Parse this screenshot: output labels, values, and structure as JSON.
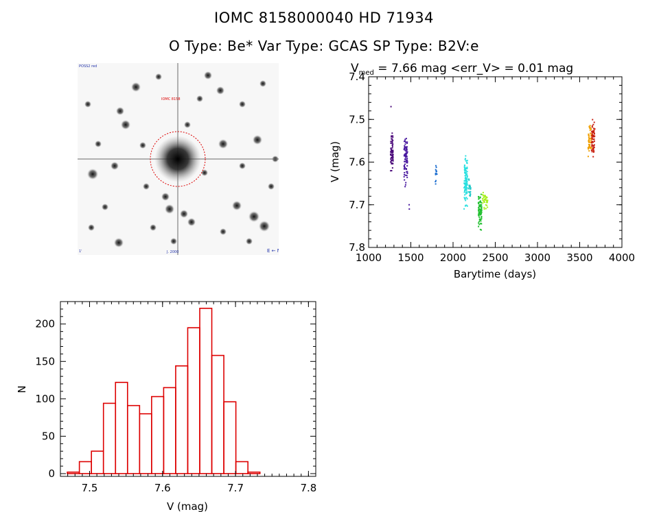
{
  "header": {
    "title_line1": "IOMC 8158000040    HD  71934",
    "title_line2": "O Type: Be*  Var Type: GCAS  SP Type: B2V:e"
  },
  "stamp": {
    "label_top_left": "POSS2 red",
    "label_center": "IOMC 8158",
    "label_bottom_left": "1'",
    "label_bottom_center": "J. 2000",
    "label_bottom_right": "E ← N"
  },
  "colors": {
    "histogram": "#dd0000",
    "aperture": "#dd0000",
    "axes": "#000000"
  },
  "chart_data": [
    {
      "type": "scatter",
      "title_parts": {
        "prefix": "V",
        "subscript": "med",
        "suffix": " = 7.66 mag <err_V> = 0.01 mag"
      },
      "xlabel": "Barytime (days)",
      "ylabel": "V (mag)",
      "xlim": [
        1000,
        4000
      ],
      "ylim": [
        7.4,
        7.8
      ],
      "y_inverted": true,
      "xticks": [
        1000,
        1500,
        2000,
        2500,
        3000,
        3500,
        4000
      ],
      "yticks": [
        7.4,
        7.5,
        7.6,
        7.7,
        7.8
      ],
      "ytick_labels": [
        "7.4",
        "7.5",
        "7.6",
        "7.7",
        "7.8"
      ],
      "grid": false,
      "groups": [
        {
          "x_range": [
            1260,
            1290
          ],
          "y_range": [
            7.52,
            7.64
          ],
          "color": "#4b0a7a",
          "n": 70,
          "outliers": [
            [
              1265,
              7.47
            ]
          ]
        },
        {
          "x_range": [
            1420,
            1460
          ],
          "y_range": [
            7.51,
            7.67
          ],
          "color": "#4a1aa0",
          "n": 90,
          "outliers": [
            [
              1480,
              7.7
            ],
            [
              1482,
              7.71
            ]
          ]
        },
        {
          "x_range": [
            1790,
            1810
          ],
          "y_range": [
            7.59,
            7.68
          ],
          "color": "#1d6fd0",
          "n": 14,
          "outliers": []
        },
        {
          "x_range": [
            2130,
            2170
          ],
          "y_range": [
            7.57,
            7.72
          ],
          "color": "#2ae0e0",
          "n": 110,
          "outliers": []
        },
        {
          "x_range": [
            2180,
            2210
          ],
          "y_range": [
            7.62,
            7.7
          ],
          "color": "#20c8c8",
          "n": 20,
          "outliers": []
        },
        {
          "x_range": [
            2300,
            2340
          ],
          "y_range": [
            7.66,
            7.77
          ],
          "color": "#22c030",
          "n": 90,
          "outliers": []
        },
        {
          "x_range": [
            2350,
            2410
          ],
          "y_range": [
            7.66,
            7.72
          ],
          "color": "#a8f020",
          "n": 40,
          "outliers": []
        },
        {
          "x_range": [
            3600,
            3640
          ],
          "y_range": [
            7.5,
            7.59
          ],
          "color": "#f0a000",
          "n": 50,
          "outliers": []
        },
        {
          "x_range": [
            3640,
            3680
          ],
          "y_range": [
            7.49,
            7.6
          ],
          "color": "#c82010",
          "n": 60,
          "outliers": []
        }
      ]
    },
    {
      "type": "bar",
      "style": "histogram-outline",
      "xlabel": "V (mag)",
      "ylabel": "N",
      "xlim": [
        7.46,
        7.81
      ],
      "ylim": [
        0,
        230
      ],
      "xticks": [
        7.5,
        7.6,
        7.7,
        7.8
      ],
      "xtick_labels": [
        "7.5",
        "7.6",
        "7.7",
        "7.8"
      ],
      "yticks": [
        0,
        50,
        100,
        150,
        200
      ],
      "bin_width": 0.0165,
      "bin_left_edges": [
        7.4695,
        7.486,
        7.5025,
        7.519,
        7.5355,
        7.552,
        7.5685,
        7.585,
        7.6015,
        7.618,
        7.6345,
        7.651,
        7.6675,
        7.684,
        7.7005,
        7.717,
        7.7335,
        7.75,
        7.7665
      ],
      "counts": [
        2,
        16,
        30,
        94,
        122,
        91,
        80,
        103,
        115,
        144,
        195,
        221,
        158,
        96,
        16,
        2,
        0,
        0,
        0
      ]
    }
  ]
}
